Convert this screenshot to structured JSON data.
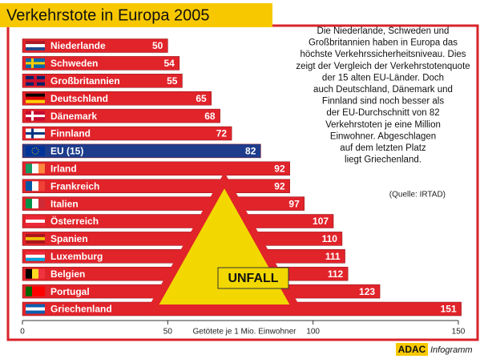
{
  "chart_data": {
    "type": "bar",
    "orientation": "horizontal",
    "title": "Verkehrstote in Europa 2005",
    "categories": [
      "Niederlande",
      "Schweden",
      "Großbritannien",
      "Deutschland",
      "Dänemark",
      "Finnland",
      "EU (15)",
      "Irland",
      "Frankreich",
      "Italien",
      "Österreich",
      "Spanien",
      "Luxemburg",
      "Belgien",
      "Portugal",
      "Griechenland"
    ],
    "values": [
      50,
      54,
      55,
      65,
      68,
      72,
      82,
      92,
      92,
      97,
      107,
      110,
      111,
      112,
      123,
      151
    ],
    "colors": [
      "#e1232a",
      "#e1232a",
      "#e1232a",
      "#e1232a",
      "#e1232a",
      "#e1232a",
      "#1d3c8c",
      "#e1232a",
      "#e1232a",
      "#e1232a",
      "#e1232a",
      "#e1232a",
      "#e1232a",
      "#e1232a",
      "#e1232a",
      "#e1232a"
    ],
    "xlim": [
      0,
      150
    ],
    "xticks": [
      0,
      50,
      100,
      150
    ],
    "xlabel": "Getötete je 1 Mio. Einwohner",
    "text_lines": [
      "Die Niederlande, Schweden und",
      "Großbritannien haben in Europa das",
      "höchste Verkehrssicherheitsniveau. Dies",
      "zeigt der Vergleich der Verkehrstotenquote",
      "der 15 alten EU-Länder. Doch",
      "auch Deutschland, Dänemark und",
      "Finnland sind noch besser als",
      "der EU-Durchschnitt von 82",
      "Verkehrstoten je eine Million",
      "Einwohner. Abgeschlagen",
      "auf dem letzten Platz",
      "liegt Griechenland."
    ],
    "source": "(Quelle: IRTAD)",
    "sign_text": "UNFALL",
    "brand": "ADAC",
    "brand_suffix": "Infogramm"
  }
}
